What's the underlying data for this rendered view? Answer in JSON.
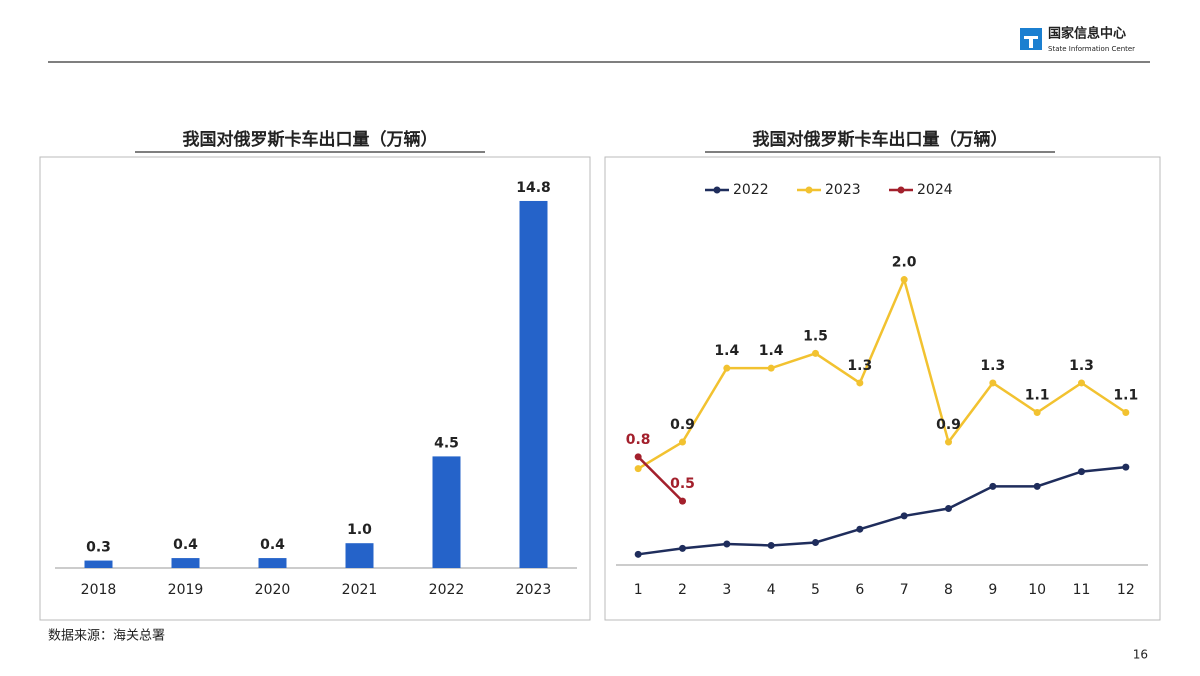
{
  "header": {
    "org_name": "国家信息中心",
    "org_name_en": "State Information Center"
  },
  "chart_data": [
    {
      "type": "bar",
      "title": "我国对俄罗斯卡车出口量（万辆）",
      "categories": [
        "2018",
        "2019",
        "2020",
        "2021",
        "2022",
        "2023"
      ],
      "values": [
        0.3,
        0.4,
        0.4,
        1.0,
        4.5,
        14.8
      ],
      "value_labels": [
        "0.3",
        "0.4",
        "0.4",
        "1.0",
        "4.5",
        "14.8"
      ],
      "color": "#2563c9",
      "ylim": [
        0,
        15
      ]
    },
    {
      "type": "line",
      "title": "我国对俄罗斯卡车出口量（万辆）",
      "categories": [
        "1",
        "2",
        "3",
        "4",
        "5",
        "6",
        "7",
        "8",
        "9",
        "10",
        "11",
        "12"
      ],
      "legend": "top-left",
      "ylim": [
        0,
        2.2
      ],
      "series": [
        {
          "name": "2022",
          "color": "#1f2d5c",
          "values": [
            0.14,
            0.18,
            0.21,
            0.2,
            0.22,
            0.31,
            0.4,
            0.45,
            0.6,
            0.6,
            0.7,
            0.73
          ]
        },
        {
          "name": "2023",
          "color": "#f2c230",
          "values": [
            0.72,
            0.9,
            1.4,
            1.4,
            1.5,
            1.3,
            2.0,
            0.9,
            1.3,
            1.1,
            1.3,
            1.1
          ],
          "value_labels": [
            null,
            "0.9",
            "1.4",
            "1.4",
            "1.5",
            "1.3",
            "2.0",
            "0.9",
            "1.3",
            "1.1",
            "1.3",
            "1.1"
          ]
        },
        {
          "name": "2024",
          "color": "#a3202c",
          "values": [
            0.8,
            0.5,
            null,
            null,
            null,
            null,
            null,
            null,
            null,
            null,
            null,
            null
          ],
          "value_labels": [
            "0.8",
            "0.5",
            null,
            null,
            null,
            null,
            null,
            null,
            null,
            null,
            null,
            null
          ]
        }
      ]
    }
  ],
  "footer": {
    "source": "数据来源：海关总署",
    "page": "16"
  }
}
